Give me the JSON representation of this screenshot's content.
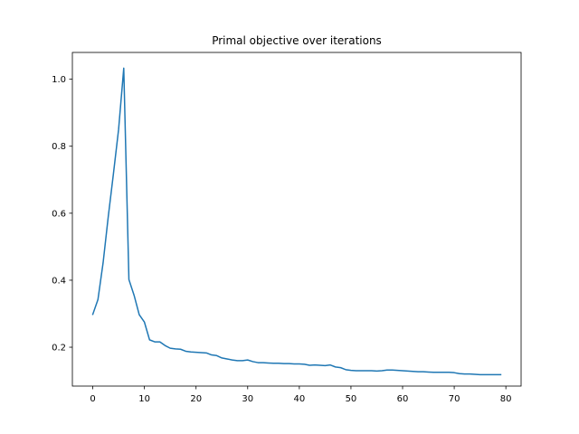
{
  "chart_data": {
    "type": "line",
    "title": "Primal objective over iterations",
    "xlabel": "",
    "ylabel": "",
    "xlim": [
      -3.95,
      82.95
    ],
    "ylim": [
      0.084,
      1.08
    ],
    "xticks": [
      0,
      10,
      20,
      30,
      40,
      50,
      60,
      70,
      80
    ],
    "yticks": [
      0.2,
      0.4,
      0.6,
      0.8,
      1.0
    ],
    "xtick_labels": [
      "0",
      "10",
      "20",
      "30",
      "40",
      "50",
      "60",
      "70",
      "80"
    ],
    "ytick_labels": [
      "0.2",
      "0.4",
      "0.6",
      "0.8",
      "1.0"
    ],
    "grid": false,
    "series": [
      {
        "color": "#1f77b4",
        "x": [
          0,
          1,
          2,
          3,
          4,
          5,
          6,
          7,
          8,
          9,
          10,
          11,
          12,
          13,
          14,
          15,
          16,
          17,
          18,
          19,
          20,
          21,
          22,
          23,
          24,
          25,
          26,
          27,
          28,
          29,
          30,
          31,
          32,
          33,
          34,
          35,
          36,
          37,
          38,
          39,
          40,
          41,
          42,
          43,
          44,
          45,
          46,
          47,
          48,
          49,
          50,
          51,
          52,
          53,
          54,
          55,
          56,
          57,
          58,
          59,
          60,
          61,
          62,
          63,
          64,
          65,
          66,
          67,
          68,
          69,
          70,
          71,
          72,
          73,
          74,
          75,
          76,
          77,
          78,
          79
        ],
        "y": [
          0.298,
          0.342,
          0.452,
          0.59,
          0.718,
          0.85,
          1.033,
          0.402,
          0.355,
          0.297,
          0.275,
          0.222,
          0.216,
          0.216,
          0.205,
          0.197,
          0.195,
          0.194,
          0.188,
          0.186,
          0.185,
          0.184,
          0.183,
          0.177,
          0.175,
          0.168,
          0.165,
          0.162,
          0.16,
          0.16,
          0.162,
          0.157,
          0.154,
          0.154,
          0.153,
          0.152,
          0.152,
          0.151,
          0.151,
          0.15,
          0.15,
          0.149,
          0.146,
          0.147,
          0.146,
          0.145,
          0.147,
          0.141,
          0.139,
          0.133,
          0.131,
          0.13,
          0.13,
          0.13,
          0.13,
          0.129,
          0.13,
          0.132,
          0.132,
          0.131,
          0.13,
          0.129,
          0.128,
          0.127,
          0.127,
          0.126,
          0.125,
          0.125,
          0.125,
          0.125,
          0.124,
          0.121,
          0.12,
          0.12,
          0.119,
          0.118,
          0.118,
          0.118,
          0.118,
          0.118
        ]
      }
    ]
  }
}
